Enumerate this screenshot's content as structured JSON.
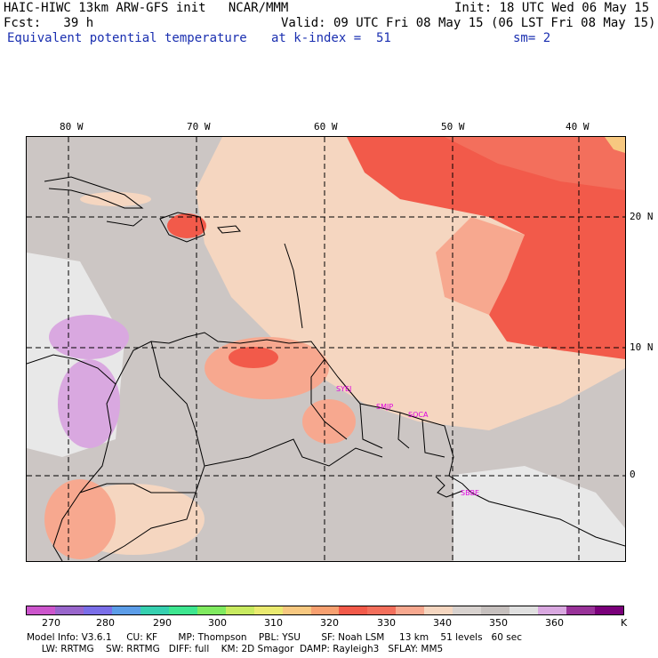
{
  "header": {
    "line1_left": "HAIC-HIWC 13km ARW-GFS init   NCAR/MMM",
    "line1_right": "Init: 18 UTC Wed 06 May 15",
    "line2_left": "Fcst:   39 h",
    "line2_right": "Valid: 09 UTC Fri 08 May 15 (06 LST Fri 08 May 15)",
    "line3_left": "Equivalent potential temperature",
    "line3_mid": "at k-index =  51",
    "line3_right": "sm= 2"
  },
  "map": {
    "lon_labels": [
      "80 W",
      "70 W",
      "60 W",
      "50 W",
      "40 W"
    ],
    "lat_labels": [
      "20 N",
      "10 N",
      "0"
    ],
    "stations": [
      "SYEJ",
      "SMJP",
      "SOCA",
      "SBBE"
    ],
    "colors": {
      "gray_bg": "#ccc6c4",
      "tan": "#f5d6c0",
      "salmon": "#f7a88f",
      "red": "#f25a4a",
      "light_gray": "#e8e8e8",
      "lavender": "#d9a8e0",
      "station": "#e000e0"
    }
  },
  "colorbar": {
    "labels": [
      "270",
      "280",
      "290",
      "300",
      "310",
      "320",
      "330",
      "340",
      "350",
      "360",
      "K"
    ],
    "colors": [
      "#cc55cc",
      "#9966cc",
      "#7a6ee8",
      "#5c9de8",
      "#36d0b0",
      "#3ee690",
      "#80ea60",
      "#c8ea60",
      "#eaea70",
      "#f7c880",
      "#f7a070",
      "#f25a4a",
      "#f36f5c",
      "#f7a88f",
      "#f5d6c0",
      "#d8d2cf",
      "#c6c0be",
      "#e0e0e0",
      "#d9a8e0",
      "#993399",
      "#7a007a"
    ]
  },
  "footer": {
    "line1": "Model Info: V3.6.1     CU: KF       MP: Thompson    PBL: YSU       SF: Noah LSM     13 km    51 levels   60 sec",
    "line2": "     LW: RRTMG    SW: RRTMG   DIFF: full    KM: 2D Smagor  DAMP: Rayleigh3   SFLAY: MM5"
  }
}
